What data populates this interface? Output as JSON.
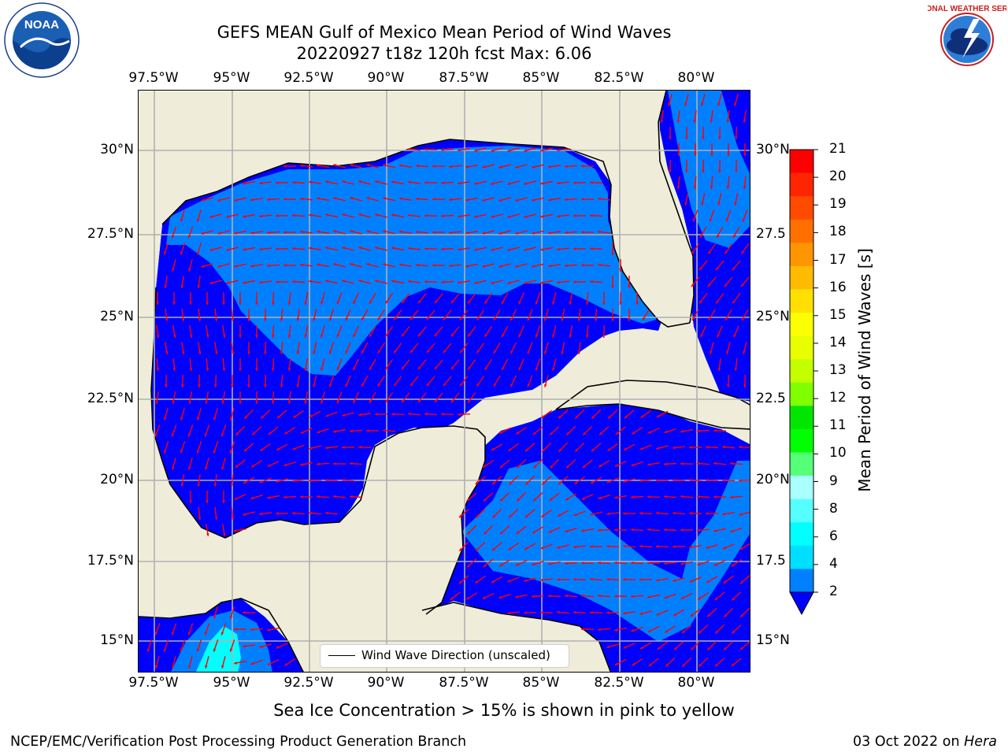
{
  "header": {
    "title_line1": "GEFS MEAN Gulf of Mexico Mean Period of Wind Waves",
    "title_line2": "20220927 t18z 120h fcst   Max: 6.06"
  },
  "logos": {
    "left": {
      "name": "noaa-logo",
      "text": "NOAA",
      "ring_text": "NATIONAL OCEANIC AND ATMOSPHERIC ADMINISTRATION · U.S. DEPARTMENT OF COMMERCE"
    },
    "right": {
      "name": "nws-logo",
      "ring_text": "NATIONAL WEATHER SERVICE"
    }
  },
  "map": {
    "lon_ticks": [
      "97.5°W",
      "95°W",
      "92.5°W",
      "90°W",
      "87.5°W",
      "85°W",
      "82.5°W",
      "80°W"
    ],
    "lat_ticks_left": [
      "30°N",
      "27.5°N",
      "25°N",
      "22.5°N",
      "20°N",
      "17.5°N",
      "15°N"
    ],
    "lat_ticks_right": [
      "30°N",
      "27.5",
      "25°N",
      "22.5",
      "20°N",
      "17.5",
      "15°N"
    ],
    "lon_range": [
      -98.0,
      -79.0
    ],
    "lat_range": [
      14.0,
      31.8
    ],
    "legend_label": "Wind Wave Direction (unscaled)",
    "colors": {
      "land": "#efedda",
      "class_2_4": "#0080ff",
      "under_2": "#0000ff",
      "class_4_6": "#00ffff",
      "arrow": "#ff0000"
    }
  },
  "colorbar": {
    "label": "Mean Period of Wind Waves [s]",
    "ticks": [
      "21",
      "20",
      "19",
      "18",
      "17",
      "16",
      "15",
      "14",
      "13",
      "12",
      "11",
      "10",
      "9",
      "8",
      "6",
      "4",
      "2"
    ],
    "colors": [
      "#ff0000",
      "#ff2500",
      "#ff4b00",
      "#ff7000",
      "#ff9500",
      "#ffbb00",
      "#ffe000",
      "#fbff00",
      "#e8ff00",
      "#c4ff00",
      "#80ff00",
      "#00e600",
      "#00ff00",
      "#55ff78",
      "#aaffff",
      "#55ffff",
      "#00ffff",
      "#00dfff",
      "#0080ff"
    ],
    "extend_color": "#0000ff"
  },
  "footer": {
    "note": "Sea Ice Concentration > 15% is shown in pink to yellow",
    "credit": "NCEP/EMC/Verification Post Processing Product Generation Branch",
    "date": "03 Oct 2022 on",
    "machine": "Hera"
  }
}
